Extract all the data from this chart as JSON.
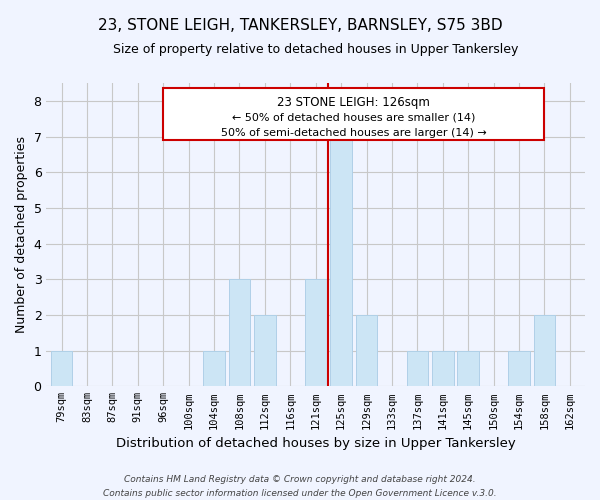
{
  "title": "23, STONE LEIGH, TANKERSLEY, BARNSLEY, S75 3BD",
  "subtitle": "Size of property relative to detached houses in Upper Tankersley",
  "xlabel": "Distribution of detached houses by size in Upper Tankersley",
  "ylabel": "Number of detached properties",
  "bins": [
    "79sqm",
    "83sqm",
    "87sqm",
    "91sqm",
    "96sqm",
    "100sqm",
    "104sqm",
    "108sqm",
    "112sqm",
    "116sqm",
    "121sqm",
    "125sqm",
    "129sqm",
    "133sqm",
    "137sqm",
    "141sqm",
    "145sqm",
    "150sqm",
    "154sqm",
    "158sqm",
    "162sqm"
  ],
  "values": [
    1,
    0,
    0,
    0,
    0,
    0,
    1,
    3,
    2,
    0,
    3,
    7,
    2,
    0,
    1,
    1,
    1,
    0,
    1,
    2,
    0
  ],
  "bar_color": "#cce5f5",
  "bar_edgecolor": "#b0d0e8",
  "redline_color": "#cc0000",
  "redline_x": 10.5,
  "annotation_title": "23 STONE LEIGH: 126sqm",
  "annotation_line1": "← 50% of detached houses are smaller (14)",
  "annotation_line2": "50% of semi-detached houses are larger (14) →",
  "ylim": [
    0,
    8.5
  ],
  "yticks": [
    0,
    1,
    2,
    3,
    4,
    5,
    6,
    7,
    8
  ],
  "footer_line1": "Contains HM Land Registry data © Crown copyright and database right 2024.",
  "footer_line2": "Contains public sector information licensed under the Open Government Licence v.3.0.",
  "background_color": "#f0f4ff",
  "grid_color": "#c8c8c8"
}
